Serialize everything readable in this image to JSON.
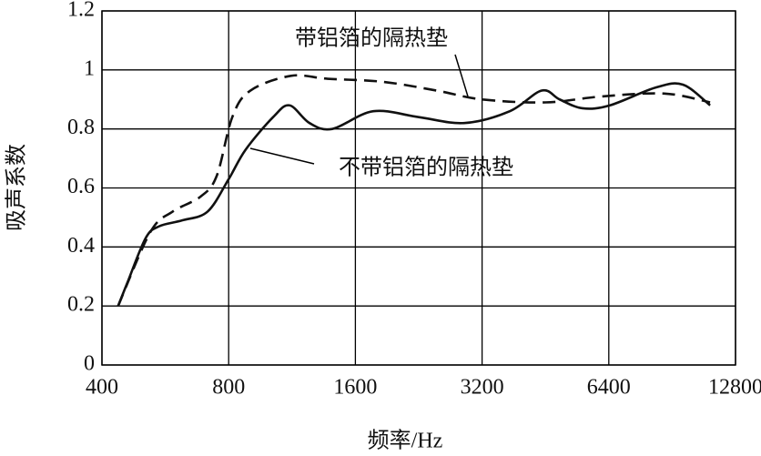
{
  "chart_data": {
    "type": "line",
    "x_label": "频率/Hz",
    "y_label": "吸声系数",
    "xscale": "log2",
    "grid": true,
    "xlim": [
      400,
      12800
    ],
    "xticks": [
      400,
      800,
      1600,
      3200,
      6400,
      12800
    ],
    "ylim": [
      0,
      1.2
    ],
    "yticks": [
      0,
      0.2,
      0.4,
      0.6,
      0.8,
      1,
      1.2
    ],
    "series": [
      {
        "name": "带铝箔的隔热垫",
        "color": "#111111",
        "dash": true,
        "x": [
          437,
          521,
          589,
          685,
          749,
          816,
          901,
          1125,
          1375,
          1852,
          2496,
          3200,
          4525,
          6140,
          8680,
          11140
        ],
        "values": [
          0.2,
          0.45,
          0.52,
          0.57,
          0.64,
          0.84,
          0.93,
          0.98,
          0.97,
          0.96,
          0.93,
          0.9,
          0.89,
          0.91,
          0.92,
          0.89
        ]
      },
      {
        "name": "不带铝箔的隔热垫",
        "color": "#111111",
        "dash": false,
        "x": [
          437,
          460,
          508,
          547,
          620,
          713,
          800,
          878,
          1020,
          1116,
          1245,
          1410,
          1764,
          2263,
          2904,
          3724,
          4433,
          4890,
          5540,
          6440,
          8260,
          9600,
          11140
        ],
        "values": [
          0.2,
          0.28,
          0.43,
          0.47,
          0.49,
          0.52,
          0.63,
          0.73,
          0.84,
          0.88,
          0.82,
          0.8,
          0.86,
          0.84,
          0.82,
          0.86,
          0.93,
          0.9,
          0.87,
          0.88,
          0.94,
          0.95,
          0.88
        ]
      }
    ]
  }
}
